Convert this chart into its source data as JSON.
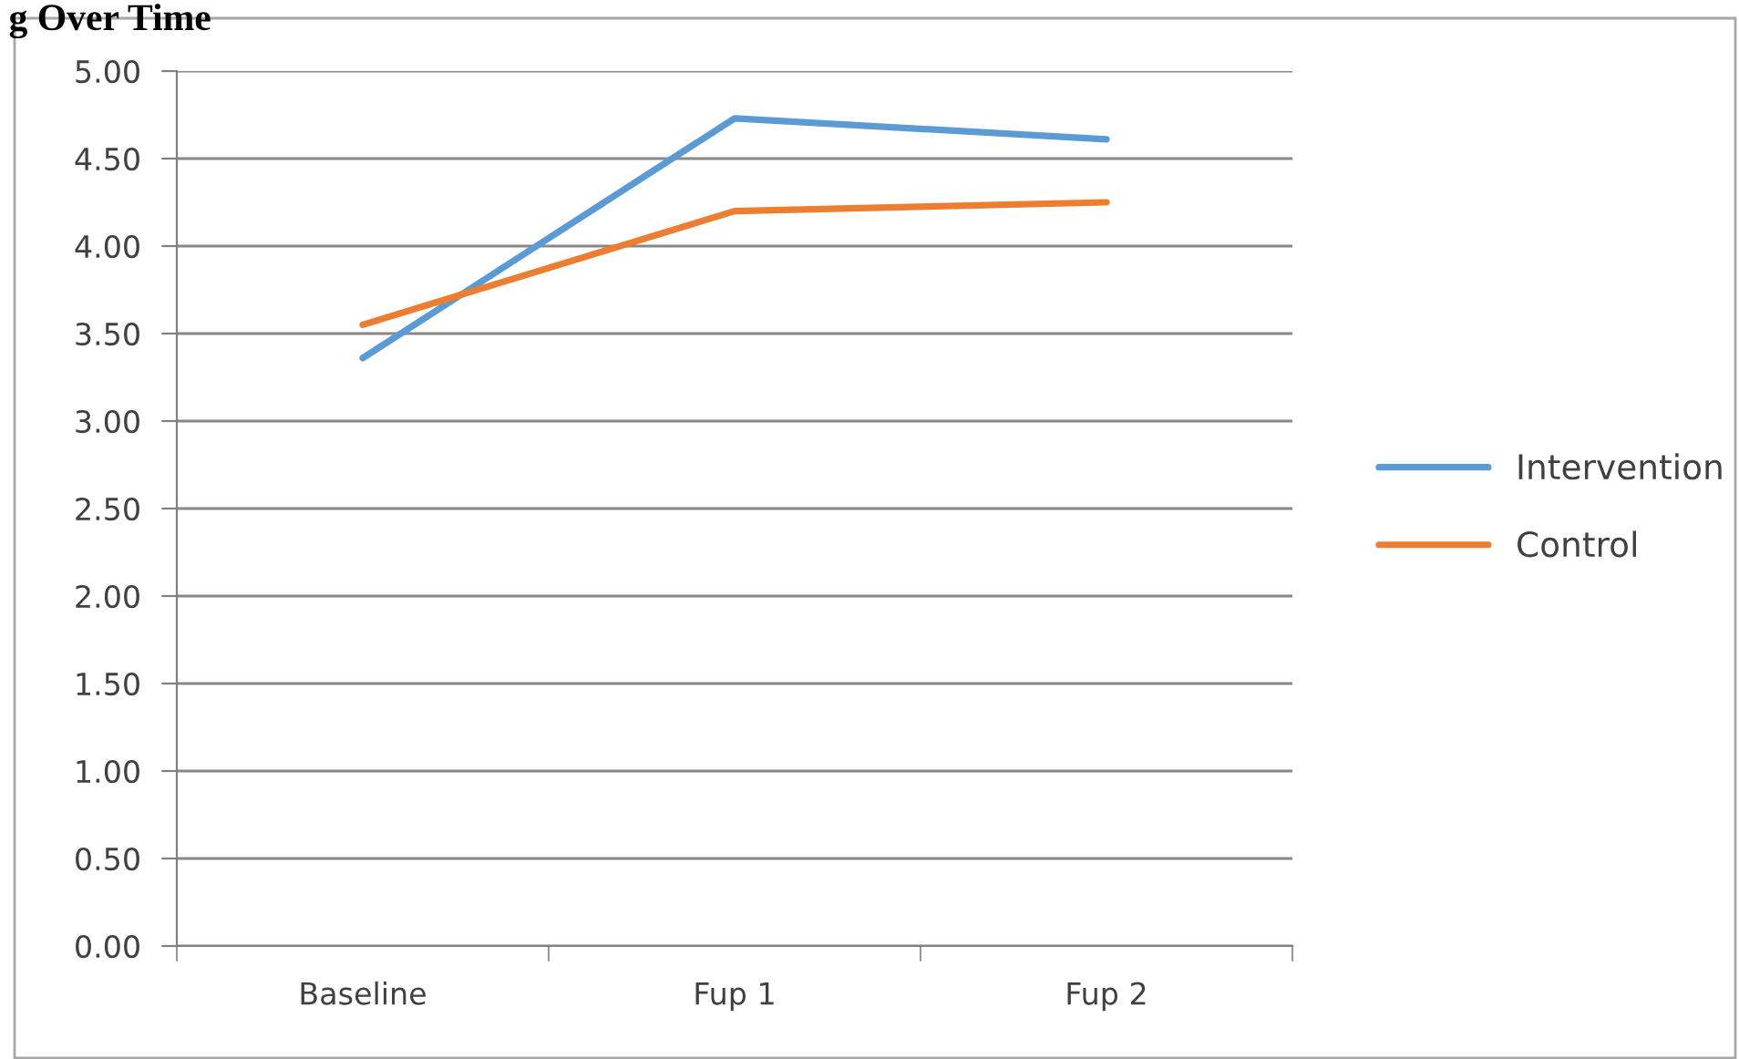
{
  "chart_data": {
    "type": "line",
    "title": "g Over Time",
    "categories": [
      "Baseline",
      "Fup 1",
      "Fup 2"
    ],
    "series": [
      {
        "name": "Intervention",
        "color": "#5b9bd5",
        "values": [
          3.36,
          4.73,
          4.61
        ]
      },
      {
        "name": "Control",
        "color": "#ed7d31",
        "values": [
          3.55,
          4.2,
          4.25
        ]
      }
    ],
    "ylim": [
      0,
      5
    ],
    "yticks": [
      {
        "value": 0,
        "label": "0.00"
      },
      {
        "value": 0.5,
        "label": "0.50"
      },
      {
        "value": 1,
        "label": "1.00"
      },
      {
        "value": 1.5,
        "label": "1.50"
      },
      {
        "value": 2,
        "label": "2.00"
      },
      {
        "value": 2.5,
        "label": "2.50"
      },
      {
        "value": 3,
        "label": "3.00"
      },
      {
        "value": 3.5,
        "label": "3.50"
      },
      {
        "value": 4,
        "label": "4.00"
      },
      {
        "value": 4.5,
        "label": "4.50"
      },
      {
        "value": 5,
        "label": "5.00"
      }
    ],
    "grid": "y",
    "legend": "right",
    "marker": "none",
    "line_style": "solid"
  }
}
